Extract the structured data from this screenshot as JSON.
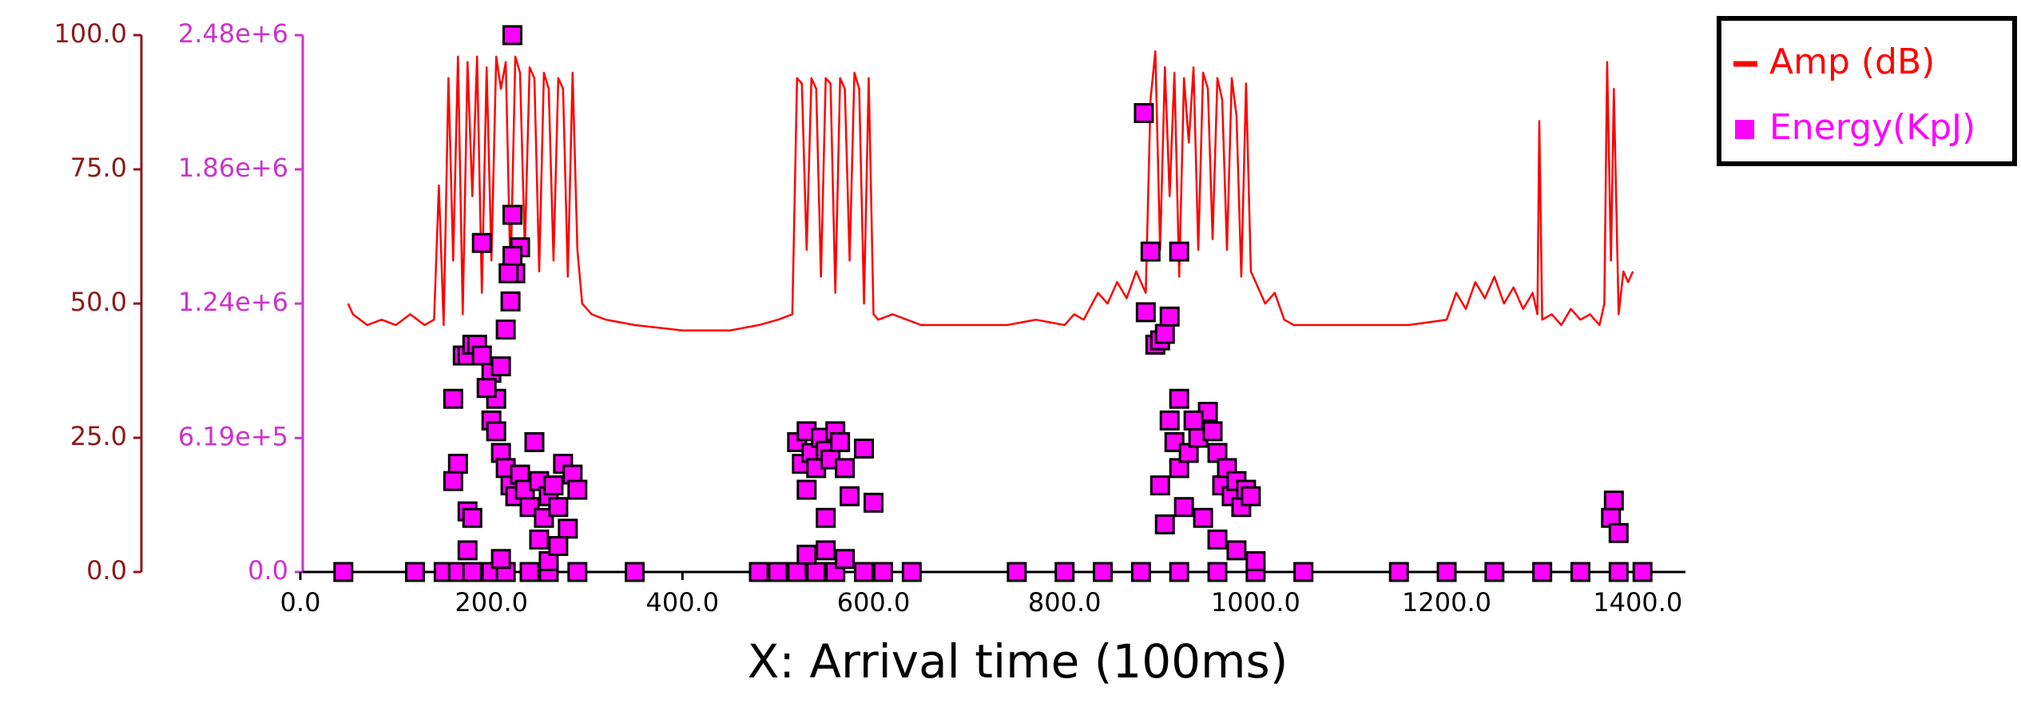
{
  "chart_data": {
    "type": "combo",
    "x_label": "X: Arrival time (100ms)",
    "xlim": [
      0,
      1450
    ],
    "xticks": [
      {
        "value": 0,
        "label": "0.0"
      },
      {
        "value": 200,
        "label": "200.0"
      },
      {
        "value": 400,
        "label": "400.0"
      },
      {
        "value": 600,
        "label": "600.0"
      },
      {
        "value": 800,
        "label": "800.0"
      },
      {
        "value": 1000,
        "label": "1000.0"
      },
      {
        "value": 1200,
        "label": "1200.0"
      },
      {
        "value": 1400,
        "label": "1400.0"
      }
    ],
    "ylim": [
      0,
      100
    ],
    "yticks": [
      {
        "value": 0,
        "label": "0.0"
      },
      {
        "value": 25,
        "label": "25.0"
      },
      {
        "value": 50,
        "label": "50.0"
      },
      {
        "value": 75,
        "label": "75.0"
      },
      {
        "value": 100,
        "label": "100.0"
      }
    ],
    "y2lim": [
      0,
      2480000
    ],
    "y2ticks": [
      {
        "value": 0,
        "label": "0.0"
      },
      {
        "value": 619000,
        "label": "6.19e+5"
      },
      {
        "value": 1240000,
        "label": "1.24e+6"
      },
      {
        "value": 1860000,
        "label": "1.86e+6"
      },
      {
        "value": 2480000,
        "label": "2.48e+6"
      }
    ],
    "y_color": "#8b1a1a",
    "y2_color": "#cc33cc",
    "legend": "top-right",
    "series": [
      {
        "name": "Amp (dB)",
        "type": "line",
        "color": "#ff0000",
        "x": [
          50,
          55,
          70,
          85,
          100,
          115,
          130,
          140,
          145,
          150,
          155,
          160,
          165,
          170,
          175,
          180,
          185,
          190,
          195,
          200,
          205,
          210,
          215,
          220,
          225,
          230,
          235,
          240,
          245,
          250,
          255,
          260,
          265,
          270,
          275,
          280,
          285,
          290,
          295,
          305,
          320,
          350,
          400,
          450,
          480,
          500,
          515,
          520,
          525,
          530,
          535,
          540,
          545,
          550,
          555,
          560,
          565,
          570,
          575,
          580,
          585,
          590,
          595,
          600,
          605,
          620,
          650,
          700,
          740,
          770,
          800,
          810,
          820,
          835,
          845,
          855,
          865,
          875,
          885,
          890,
          895,
          900,
          905,
          910,
          915,
          920,
          925,
          930,
          935,
          940,
          945,
          950,
          955,
          960,
          965,
          970,
          975,
          980,
          985,
          990,
          995,
          1000,
          1010,
          1020,
          1030,
          1040,
          1080,
          1120,
          1160,
          1200,
          1210,
          1220,
          1230,
          1240,
          1250,
          1260,
          1270,
          1280,
          1290,
          1295,
          1297,
          1300,
          1310,
          1320,
          1330,
          1340,
          1350,
          1360,
          1365,
          1368,
          1372,
          1375,
          1380,
          1385,
          1390,
          1395
        ],
        "values": [
          50,
          48,
          46,
          47,
          46,
          48,
          46,
          47,
          72,
          46,
          92,
          58,
          96,
          48,
          95,
          70,
          96,
          52,
          94,
          58,
          96,
          90,
          95,
          55,
          96,
          93,
          60,
          94,
          92,
          56,
          93,
          90,
          58,
          92,
          90,
          55,
          93,
          60,
          50,
          48,
          47,
          46,
          45,
          45,
          46,
          47,
          48,
          92,
          91,
          60,
          92,
          90,
          55,
          92,
          91,
          52,
          92,
          90,
          58,
          93,
          90,
          50,
          92,
          48,
          47,
          48,
          46,
          46,
          46,
          47,
          46,
          48,
          47,
          52,
          50,
          54,
          51,
          56,
          52,
          88,
          97,
          60,
          94,
          70,
          93,
          55,
          92,
          80,
          94,
          60,
          93,
          90,
          62,
          92,
          88,
          60,
          92,
          85,
          55,
          91,
          56,
          54,
          50,
          52,
          47,
          46,
          46,
          46,
          46,
          47,
          52,
          49,
          54,
          51,
          55,
          50,
          53,
          49,
          52,
          48,
          84,
          47,
          48,
          46,
          49,
          47,
          48,
          46,
          50,
          95,
          58,
          90,
          48,
          56,
          54,
          56
        ]
      },
      {
        "name": "Energy(KpJ)",
        "type": "scatter",
        "axis": "y2",
        "color": "#ff00ff",
        "x": [
          45,
          120,
          150,
          165,
          180,
          200,
          215,
          240,
          260,
          290,
          350,
          170,
          175,
          180,
          185,
          190,
          160,
          165,
          175,
          160,
          200,
          205,
          210,
          215,
          220,
          225,
          230,
          222,
          222,
          218,
          222,
          190,
          195,
          200,
          205,
          210,
          215,
          220,
          225,
          230,
          235,
          240,
          245,
          250,
          255,
          260,
          265,
          270,
          275,
          280,
          285,
          290,
          175,
          210,
          260,
          180,
          250,
          270,
          480,
          500,
          520,
          540,
          560,
          590,
          610,
          640,
          520,
          525,
          530,
          535,
          540,
          545,
          550,
          555,
          560,
          565,
          570,
          575,
          530,
          550,
          590,
          600,
          530,
          550,
          570,
          750,
          800,
          840,
          880,
          920,
          960,
          1000,
          1050,
          890,
          895,
          900,
          905,
          910,
          885,
          883,
          920,
          905,
          910,
          915,
          920,
          930,
          940,
          950,
          955,
          960,
          965,
          970,
          975,
          980,
          985,
          990,
          995,
          900,
          925,
          945,
          960,
          980,
          1000,
          920,
          935,
          1150,
          1200,
          1250,
          1300,
          1340,
          1380,
          1405,
          1375,
          1372,
          1380
        ],
        "values": [
          0,
          0,
          0,
          0,
          0,
          0,
          0,
          0,
          0,
          0,
          0,
          1000000,
          1000000,
          1050000,
          1050000,
          1000000,
          800000,
          500000,
          280000,
          420000,
          920000,
          800000,
          950000,
          1120000,
          1250000,
          1380000,
          1500000,
          1650000,
          1460000,
          1380000,
          2480000,
          1520000,
          850000,
          700000,
          650000,
          550000,
          480000,
          400000,
          350000,
          450000,
          380000,
          300000,
          600000,
          420000,
          250000,
          350000,
          400000,
          300000,
          500000,
          200000,
          450000,
          380000,
          100000,
          60000,
          50000,
          250000,
          150000,
          120000,
          0,
          0,
          0,
          0,
          0,
          0,
          0,
          0,
          600000,
          500000,
          650000,
          550000,
          480000,
          620000,
          560000,
          520000,
          650000,
          600000,
          480000,
          350000,
          380000,
          250000,
          570000,
          320000,
          80000,
          100000,
          60000,
          0,
          0,
          0,
          0,
          0,
          0,
          0,
          0,
          1480000,
          1050000,
          1070000,
          1100000,
          1180000,
          1200000,
          2120000,
          1480000,
          220000,
          700000,
          600000,
          480000,
          550000,
          620000,
          740000,
          650000,
          550000,
          400000,
          480000,
          350000,
          420000,
          300000,
          380000,
          350000,
          400000,
          300000,
          250000,
          150000,
          100000,
          50000,
          800000,
          700000,
          0,
          0,
          0,
          0,
          0,
          0,
          0,
          330000,
          250000,
          180000
        ]
      }
    ]
  }
}
